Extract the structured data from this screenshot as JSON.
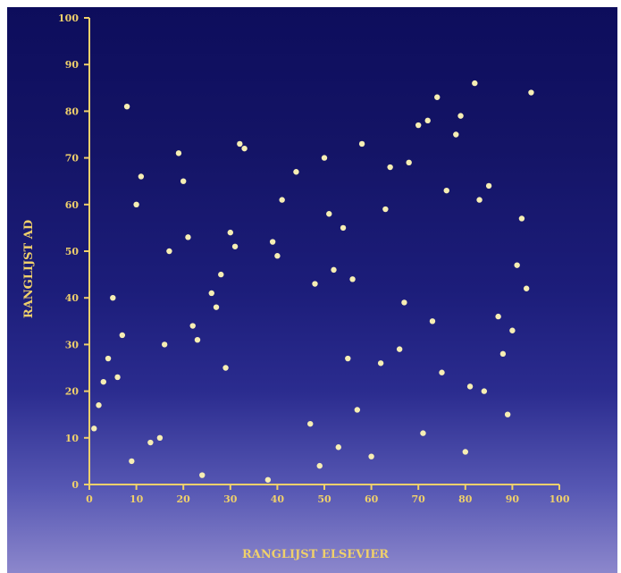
{
  "chart_data": {
    "type": "scatter",
    "xlabel": "RANGLIJST ELSEVIER",
    "ylabel": "RANGLIJST AD",
    "xlim": [
      0,
      100
    ],
    "ylim": [
      0,
      100
    ],
    "x_ticks": [
      0,
      10,
      20,
      30,
      40,
      50,
      60,
      70,
      80,
      90,
      100
    ],
    "y_ticks": [
      0,
      10,
      20,
      30,
      40,
      50,
      60,
      70,
      80,
      90,
      100
    ],
    "grid": false,
    "colors": {
      "axis": "#efd06b",
      "point": "#f6eeb4"
    },
    "points": [
      [
        1,
        12
      ],
      [
        2,
        17
      ],
      [
        3,
        22
      ],
      [
        4,
        27
      ],
      [
        5,
        40
      ],
      [
        6,
        23
      ],
      [
        7,
        32
      ],
      [
        8,
        81
      ],
      [
        9,
        5
      ],
      [
        10,
        60
      ],
      [
        11,
        66
      ],
      [
        13,
        9
      ],
      [
        15,
        10
      ],
      [
        16,
        30
      ],
      [
        17,
        50
      ],
      [
        19,
        71
      ],
      [
        20,
        65
      ],
      [
        21,
        53
      ],
      [
        22,
        34
      ],
      [
        23,
        31
      ],
      [
        24,
        2
      ],
      [
        26,
        41
      ],
      [
        27,
        38
      ],
      [
        28,
        45
      ],
      [
        29,
        25
      ],
      [
        30,
        54
      ],
      [
        31,
        51
      ],
      [
        32,
        73
      ],
      [
        33,
        72
      ],
      [
        38,
        1
      ],
      [
        39,
        52
      ],
      [
        40,
        49
      ],
      [
        41,
        61
      ],
      [
        44,
        67
      ],
      [
        47,
        13
      ],
      [
        48,
        43
      ],
      [
        49,
        4
      ],
      [
        50,
        70
      ],
      [
        51,
        58
      ],
      [
        52,
        46
      ],
      [
        53,
        8
      ],
      [
        54,
        55
      ],
      [
        55,
        27
      ],
      [
        56,
        44
      ],
      [
        57,
        16
      ],
      [
        58,
        73
      ],
      [
        60,
        6
      ],
      [
        62,
        26
      ],
      [
        63,
        59
      ],
      [
        64,
        68
      ],
      [
        66,
        29
      ],
      [
        67,
        39
      ],
      [
        68,
        69
      ],
      [
        70,
        77
      ],
      [
        71,
        11
      ],
      [
        72,
        78
      ],
      [
        73,
        35
      ],
      [
        74,
        83
      ],
      [
        75,
        24
      ],
      [
        76,
        63
      ],
      [
        78,
        75
      ],
      [
        79,
        79
      ],
      [
        80,
        7
      ],
      [
        81,
        21
      ],
      [
        82,
        86
      ],
      [
        83,
        61
      ],
      [
        84,
        20
      ],
      [
        85,
        64
      ],
      [
        87,
        36
      ],
      [
        88,
        28
      ],
      [
        89,
        15
      ],
      [
        90,
        33
      ],
      [
        91,
        47
      ],
      [
        92,
        57
      ],
      [
        93,
        42
      ],
      [
        94,
        84
      ]
    ]
  }
}
